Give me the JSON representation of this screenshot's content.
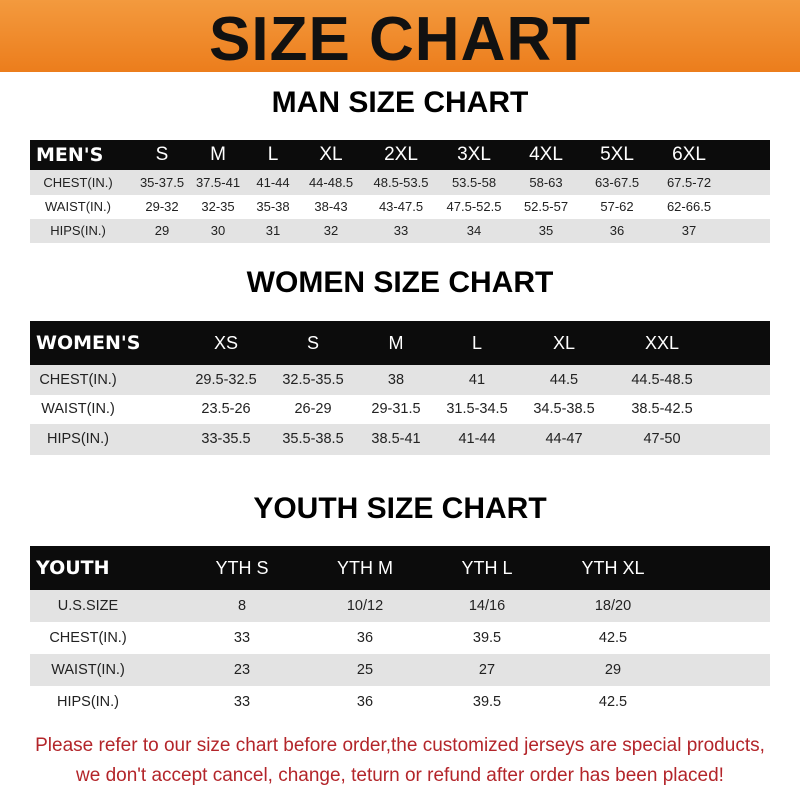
{
  "banner": {
    "title": "SIZE CHART",
    "color": "#ee8427"
  },
  "men": {
    "title": "MAN SIZE CHART",
    "headers": [
      "MEN'S",
      "S",
      "M",
      "L",
      "XL",
      "2XL",
      "3XL",
      "4XL",
      "5XL",
      "6XL"
    ],
    "rows": [
      [
        "CHEST(IN.)",
        "35-37.5",
        "37.5-41",
        "41-44",
        "44-48.5",
        "48.5-53.5",
        "53.5-58",
        "58-63",
        "63-67.5",
        "67.5-72"
      ],
      [
        "WAIST(IN.)",
        "29-32",
        "32-35",
        "35-38",
        "38-43",
        "43-47.5",
        "47.5-52.5",
        "52.5-57",
        "57-62",
        "62-66.5"
      ],
      [
        "HIPS(IN.)",
        "29",
        "30",
        "31",
        "32",
        "33",
        "34",
        "35",
        "36",
        "37"
      ]
    ]
  },
  "women": {
    "title": "WOMEN SIZE CHART",
    "headers": [
      "WOMEN'S",
      "XS",
      "S",
      "M",
      "L",
      "XL",
      "XXL"
    ],
    "rows": [
      [
        "CHEST(IN.)",
        "29.5-32.5",
        "32.5-35.5",
        "38",
        "41",
        "44.5",
        "44.5-48.5"
      ],
      [
        "WAIST(IN.)",
        "23.5-26",
        "26-29",
        "29-31.5",
        "31.5-34.5",
        "34.5-38.5",
        "38.5-42.5"
      ],
      [
        "HIPS(IN.)",
        "33-35.5",
        "35.5-38.5",
        "38.5-41",
        "41-44",
        "44-47",
        "47-50"
      ]
    ]
  },
  "youth": {
    "title": "YOUTH SIZE CHART",
    "headers": [
      "YOUTH",
      "YTH S",
      "YTH M",
      "YTH L",
      "YTH XL"
    ],
    "rows": [
      [
        "U.S.SIZE",
        "8",
        "10/12",
        "14/16",
        "18/20"
      ],
      [
        "CHEST(IN.)",
        "33",
        "36",
        "39.5",
        "42.5"
      ],
      [
        "WAIST(IN.)",
        "23",
        "25",
        "27",
        "29"
      ],
      [
        "HIPS(IN.)",
        "33",
        "36",
        "39.5",
        "42.5"
      ]
    ]
  },
  "footer": {
    "line1": "Please refer to our size chart before order,the customized jerseys are special products,",
    "line2": "we don't accept cancel, change, teturn or refund after order has been placed!",
    "color": "#b3252a"
  }
}
